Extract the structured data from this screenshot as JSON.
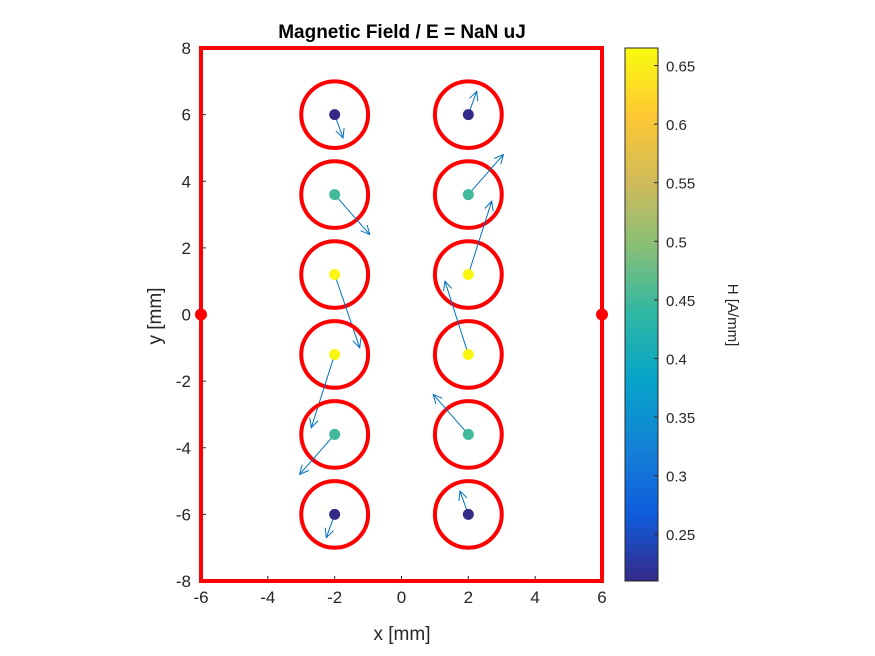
{
  "chart_data": {
    "type": "scatter",
    "title": "Magnetic Field  / E = NaN uJ",
    "xlabel": "x [mm]",
    "ylabel": "y [mm]",
    "xlim": [
      -6,
      6
    ],
    "ylim": [
      -8,
      8
    ],
    "xticks": [
      -6,
      -4,
      -2,
      0,
      2,
      4,
      6
    ],
    "yticks": [
      -8,
      -6,
      -4,
      -2,
      0,
      2,
      4,
      6,
      8
    ],
    "xtick_labels": [
      "-6",
      "-4",
      "-2",
      "0",
      "2",
      "4",
      "6"
    ],
    "ytick_labels": [
      "-8",
      "-6",
      "-4",
      "-2",
      "0",
      "2",
      "4",
      "6",
      "8"
    ],
    "boundary": {
      "x": [
        -6,
        6
      ],
      "y": [
        -8,
        8
      ],
      "color": "#ff0000"
    },
    "boundary_markers": [
      {
        "x": -6,
        "y": 0
      },
      {
        "x": 6,
        "y": 0
      }
    ],
    "conductors": [
      {
        "x": -2,
        "y": 6,
        "radius": 1,
        "H": 0.21,
        "arrow_dx": 0.25,
        "arrow_dy": -0.7
      },
      {
        "x": -2,
        "y": 3.6,
        "radius": 1,
        "H": 0.45,
        "arrow_dx": 1.05,
        "arrow_dy": -1.2
      },
      {
        "x": -2,
        "y": 1.2,
        "radius": 1,
        "H": 0.66,
        "arrow_dx": 0.75,
        "arrow_dy": -2.2
      },
      {
        "x": -2,
        "y": -1.2,
        "radius": 1,
        "H": 0.66,
        "arrow_dx": -0.7,
        "arrow_dy": -2.2
      },
      {
        "x": -2,
        "y": -3.6,
        "radius": 1,
        "H": 0.45,
        "arrow_dx": -1.05,
        "arrow_dy": -1.2
      },
      {
        "x": -2,
        "y": -6,
        "radius": 1,
        "H": 0.21,
        "arrow_dx": -0.25,
        "arrow_dy": -0.7
      },
      {
        "x": 2,
        "y": 6,
        "radius": 1,
        "H": 0.21,
        "arrow_dx": 0.25,
        "arrow_dy": 0.7
      },
      {
        "x": 2,
        "y": 3.6,
        "radius": 1,
        "H": 0.45,
        "arrow_dx": 1.05,
        "arrow_dy": 1.2
      },
      {
        "x": 2,
        "y": 1.2,
        "radius": 1,
        "H": 0.66,
        "arrow_dx": 0.7,
        "arrow_dy": 2.2
      },
      {
        "x": 2,
        "y": -1.2,
        "radius": 1,
        "H": 0.66,
        "arrow_dx": -0.7,
        "arrow_dy": 2.2
      },
      {
        "x": 2,
        "y": -3.6,
        "radius": 1,
        "H": 0.45,
        "arrow_dx": -1.05,
        "arrow_dy": 1.2
      },
      {
        "x": 2,
        "y": -6,
        "radius": 1,
        "H": 0.21,
        "arrow_dx": -0.25,
        "arrow_dy": 0.7
      }
    ],
    "colorbar": {
      "label": "H [A/mm]",
      "range": [
        0.21,
        0.665
      ],
      "ticks": [
        0.25,
        0.3,
        0.35,
        0.4,
        0.45,
        0.5,
        0.55,
        0.6,
        0.65
      ],
      "tick_labels": [
        "0.25",
        "0.3",
        "0.35",
        "0.4",
        "0.45",
        "0.5",
        "0.55",
        "0.6",
        "0.65"
      ],
      "colormap": "parula"
    },
    "colors": {
      "boundary": "#ff0000",
      "circle": "#ff0000",
      "arrow": "#0072bd"
    }
  }
}
